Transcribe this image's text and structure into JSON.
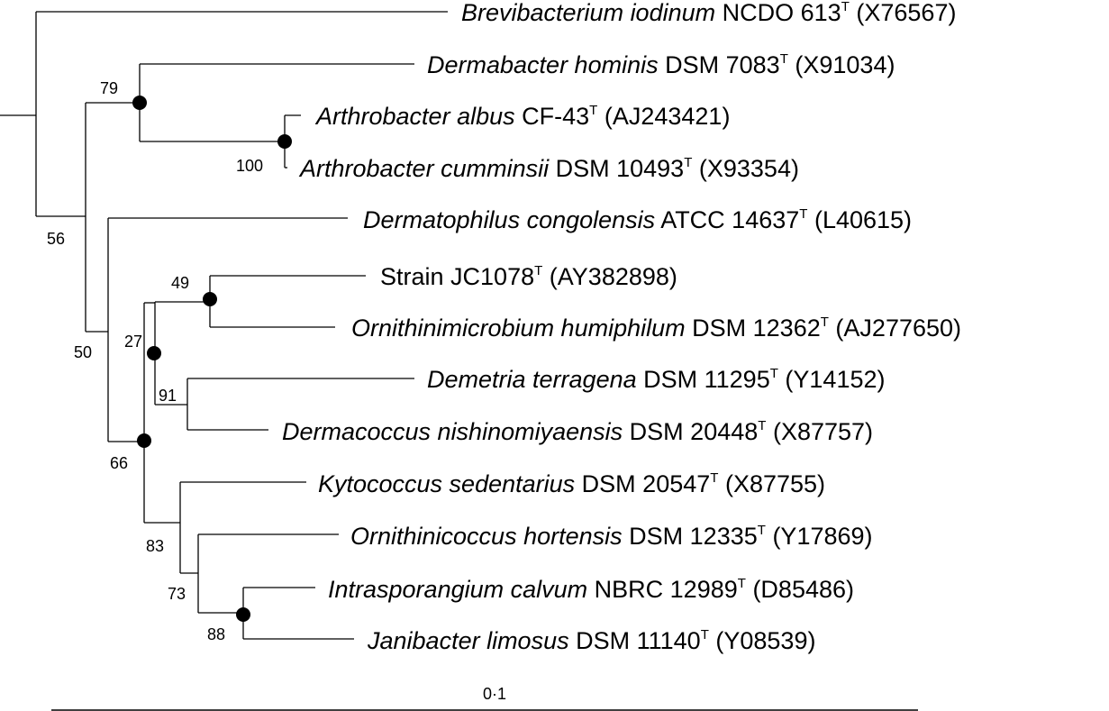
{
  "taxa": [
    {
      "id": "brevibacterium",
      "name": "Brevibacterium iodinum",
      "strain": "NCDO 613",
      "type_mark": "T",
      "accession": "(X76567)"
    },
    {
      "id": "dermabacter",
      "name": "Dermabacter hominis",
      "strain": "DSM 7083",
      "type_mark": "T",
      "accession": "(X91034)"
    },
    {
      "id": "arthrobacter-albus",
      "name": "Arthrobacter albus",
      "strain": "CF-43",
      "type_mark": "T",
      "accession": "(AJ243421)"
    },
    {
      "id": "arthrobacter-cumminsii",
      "name": "Arthrobacter cumminsii",
      "strain": "DSM 10493",
      "type_mark": "T",
      "accession": "(X93354)"
    },
    {
      "id": "dermatophilus",
      "name": "Dermatophilus congolensis",
      "strain": "ATCC 14637",
      "type_mark": "T",
      "accession": "(L40615)"
    },
    {
      "id": "strain-jc1078",
      "name": "",
      "strain": "Strain JC1078",
      "type_mark": "T",
      "accession": "(AY382898)"
    },
    {
      "id": "ornithinimicrobium",
      "name": "Ornithinimicrobium humiphilum",
      "strain": "DSM 12362",
      "type_mark": "T",
      "accession": "(AJ277650)"
    },
    {
      "id": "demetria",
      "name": "Demetria terragena",
      "strain": "DSM 11295",
      "type_mark": "T",
      "accession": "(Y14152)"
    },
    {
      "id": "dermacoccus",
      "name": "Dermacoccus nishinomiyaensis",
      "strain": "DSM 20448",
      "type_mark": "T",
      "accession": "(X87757)"
    },
    {
      "id": "kytococcus",
      "name": "Kytococcus sedentarius",
      "strain": "DSM 20547",
      "type_mark": "T",
      "accession": "(X87755)"
    },
    {
      "id": "ornithinicoccus",
      "name": "Ornithinicoccus hortensis",
      "strain": "DSM 12335",
      "type_mark": "T",
      "accession": "(Y17869)"
    },
    {
      "id": "intrasporangium",
      "name": "Intrasporangium calvum",
      "strain": "NBRC 12989",
      "type_mark": "T",
      "accession": "(D85486)"
    },
    {
      "id": "janibacter",
      "name": "Janibacter limosus",
      "strain": "DSM 11140",
      "type_mark": "T",
      "accession": "(Y08539)"
    }
  ],
  "bootstrap_values": [
    "79",
    "100",
    "56",
    "50",
    "49",
    "27",
    "91",
    "66",
    "83",
    "73",
    "88"
  ],
  "scale_bar": {
    "label": "0·1",
    "value": 0.1
  }
}
